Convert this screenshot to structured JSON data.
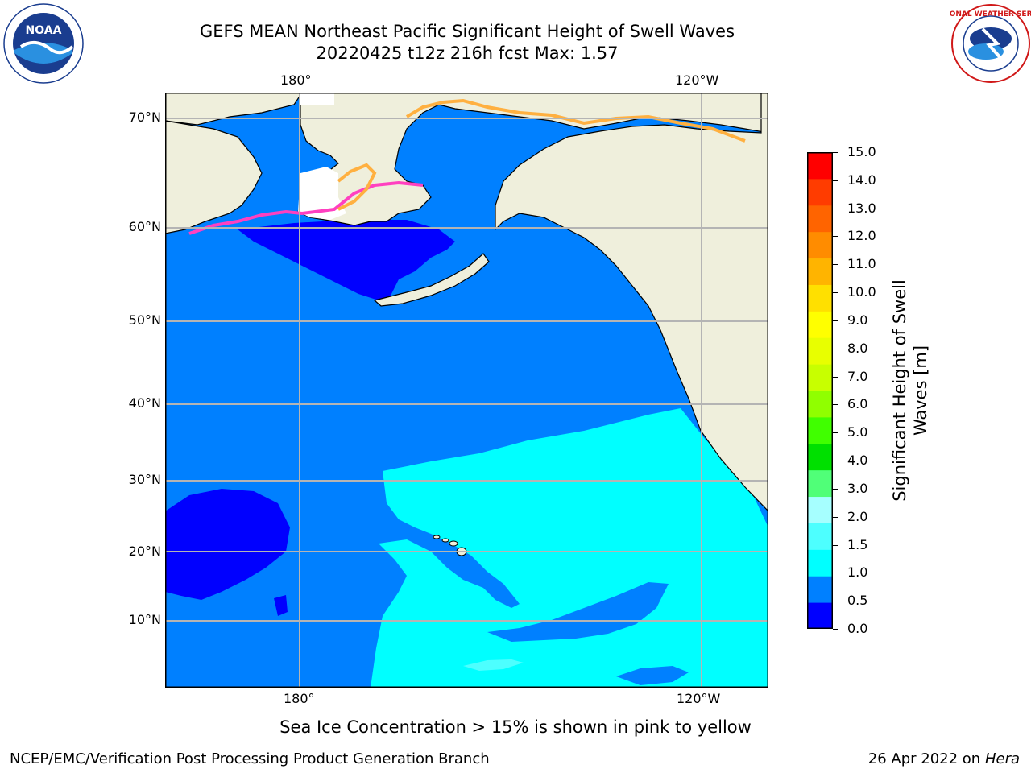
{
  "title": {
    "line1": "GEFS MEAN Northeast Pacific Significant Height of Swell Waves",
    "line2": "20220425 t12z 216h fcst   Max: 1.57"
  },
  "map": {
    "lon_labels_top": [
      "180°",
      "120°W"
    ],
    "lon_labels_bottom": [
      "180°",
      "120°W"
    ],
    "lat_labels": [
      "70°N",
      "60°N",
      "50°N",
      "40°N",
      "30°N",
      "20°N",
      "10°N"
    ],
    "colors": {
      "land": "#efefdc",
      "sea_ice_top": "#ffffff",
      "band_0_0_5": "#0000ff",
      "band_0_5_1_0": "#0080ff",
      "band_1_0_1_5": "#00ffff",
      "band_1_5_2_0": "#4dffff",
      "grid": "#b4b4b4",
      "ice_pink": "#ff40c0",
      "ice_orange": "#ffb040"
    }
  },
  "colorbar": {
    "label": "Significant Height of Swell Waves [m]",
    "label_line1": "Significant Height of Swell",
    "label_line2": "Waves [m]",
    "ticks": [
      "15.0",
      "14.0",
      "13.0",
      "12.0",
      "11.0",
      "10.0",
      "9.0",
      "8.0",
      "7.0",
      "6.0",
      "5.0",
      "4.0",
      "3.0",
      "2.0",
      "1.5",
      "1.0",
      "0.5",
      "0.0"
    ],
    "colors": [
      "#0000ff",
      "#0080ff",
      "#00ffff",
      "#4dffff",
      "#a6ffff",
      "#50ff78",
      "#00e000",
      "#40ff00",
      "#90ff00",
      "#c8ff00",
      "#e8ff00",
      "#ffff00",
      "#ffe000",
      "#ffb400",
      "#ff8c00",
      "#ff6400",
      "#ff3c00",
      "#ff0000"
    ]
  },
  "logos": {
    "noaa_text": "NOAA",
    "nws_text": "NATIONAL WEATHER SERVICE"
  },
  "footer": {
    "note": "Sea Ice Concentration > 15% is shown in pink to yellow",
    "credit": "NCEP/EMC/Verification Post Processing Product Generation Branch",
    "date": "26 Apr 2022 on",
    "host": "Hera"
  }
}
